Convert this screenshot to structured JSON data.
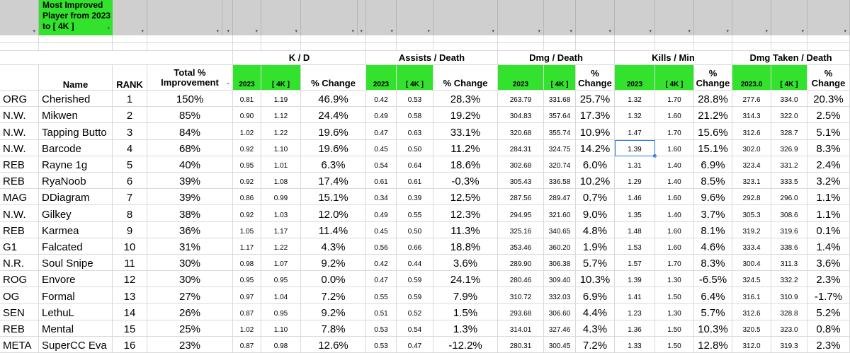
{
  "title": "Most Improved Player from 2023 to [ 4K ]",
  "headers": {
    "name": "Name",
    "rank": "RANK",
    "total": "Total % Improvement",
    "groups": [
      "K / D",
      "Assists / Death",
      "Dmg / Death",
      "Kills / Min",
      "Dmg Taken / Death"
    ],
    "pct_change": "% Change",
    "year_a": [
      "2023",
      "2023",
      "2023",
      "2023",
      "2023.0"
    ],
    "year_b": "[ 4K ]"
  },
  "rows": [
    [
      "ORG",
      "Cherished",
      "1",
      "150%",
      "0.81",
      "1.19",
      "46.9%",
      "0.42",
      "0.53",
      "28.3%",
      "263.79",
      "331.68",
      "25.7%",
      "1.32",
      "1.70",
      "28.8%",
      "277.6",
      "334.0",
      "20.3%"
    ],
    [
      "N.W.",
      "Mikwen",
      "2",
      "85%",
      "0.90",
      "1.12",
      "24.4%",
      "0.49",
      "0.58",
      "19.2%",
      "304.83",
      "357.64",
      "17.3%",
      "1.32",
      "1.60",
      "21.2%",
      "314.3",
      "322.0",
      "2.5%"
    ],
    [
      "N.W.",
      "Tapping Butto",
      "3",
      "84%",
      "1.02",
      "1.22",
      "19.6%",
      "0.47",
      "0.63",
      "33.1%",
      "320.68",
      "355.74",
      "10.9%",
      "1.47",
      "1.70",
      "15.6%",
      "312.6",
      "328.7",
      "5.1%"
    ],
    [
      "N.W.",
      "Barcode",
      "4",
      "68%",
      "0.92",
      "1.10",
      "19.6%",
      "0.45",
      "0.50",
      "11.2%",
      "284.31",
      "324.75",
      "14.2%",
      "1.39",
      "1.60",
      "15.1%",
      "302.0",
      "326.9",
      "8.3%"
    ],
    [
      "REB",
      "Rayne 1g",
      "5",
      "40%",
      "0.95",
      "1.01",
      "6.3%",
      "0.54",
      "0.64",
      "18.6%",
      "302.68",
      "320.74",
      "6.0%",
      "1.31",
      "1.40",
      "6.9%",
      "323.4",
      "331.2",
      "2.4%"
    ],
    [
      "REB",
      "RyaNoob",
      "6",
      "39%",
      "0.92",
      "1.08",
      "17.4%",
      "0.61",
      "0.61",
      "-0.3%",
      "305.43",
      "336.58",
      "10.2%",
      "1.29",
      "1.40",
      "8.5%",
      "323.1",
      "333.5",
      "3.2%"
    ],
    [
      "MAG",
      "DDiagram",
      "7",
      "39%",
      "0.86",
      "0.99",
      "15.1%",
      "0.34",
      "0.39",
      "12.5%",
      "287.56",
      "289.47",
      "0.7%",
      "1.46",
      "1.60",
      "9.6%",
      "292.8",
      "296.0",
      "1.1%"
    ],
    [
      "N.W.",
      "Gilkey",
      "8",
      "38%",
      "0.92",
      "1.03",
      "12.0%",
      "0.49",
      "0.55",
      "12.3%",
      "294.95",
      "321.60",
      "9.0%",
      "1.35",
      "1.40",
      "3.7%",
      "305.3",
      "308.6",
      "1.1%"
    ],
    [
      "REB",
      "Karmea",
      "9",
      "36%",
      "1.05",
      "1.17",
      "11.4%",
      "0.45",
      "0.50",
      "11.3%",
      "325.16",
      "340.65",
      "4.8%",
      "1.48",
      "1.60",
      "8.1%",
      "319.2",
      "319.6",
      "0.1%"
    ],
    [
      "G1",
      "Falcated",
      "10",
      "31%",
      "1.17",
      "1.22",
      "4.3%",
      "0.56",
      "0.66",
      "18.8%",
      "353.46",
      "360.20",
      "1.9%",
      "1.53",
      "1.60",
      "4.6%",
      "333.4",
      "338.6",
      "1.4%"
    ],
    [
      "N.R.",
      "Soul Snipe",
      "11",
      "30%",
      "0.98",
      "1.07",
      "9.2%",
      "0.42",
      "0.44",
      "3.6%",
      "289.90",
      "306.38",
      "5.7%",
      "1.57",
      "1.70",
      "8.3%",
      "300.4",
      "311.3",
      "3.6%"
    ],
    [
      "ROG",
      "Envore",
      "12",
      "30%",
      "0.95",
      "0.95",
      "0.0%",
      "0.47",
      "0.59",
      "24.1%",
      "280.46",
      "309.40",
      "10.3%",
      "1.39",
      "1.30",
      "-6.5%",
      "324.5",
      "332.2",
      "2.3%"
    ],
    [
      "OG",
      "Formal",
      "13",
      "27%",
      "0.97",
      "1.04",
      "7.2%",
      "0.55",
      "0.59",
      "7.9%",
      "310.72",
      "332.03",
      "6.9%",
      "1.41",
      "1.50",
      "6.4%",
      "316.1",
      "310.9",
      "-1.7%"
    ],
    [
      "SEN",
      "LethuL",
      "14",
      "26%",
      "0.87",
      "0.95",
      "9.2%",
      "0.51",
      "0.52",
      "1.5%",
      "293.68",
      "306.60",
      "4.4%",
      "1.23",
      "1.30",
      "5.7%",
      "312.6",
      "328.8",
      "5.2%"
    ],
    [
      "REB",
      "Mental",
      "15",
      "25%",
      "1.02",
      "1.10",
      "7.8%",
      "0.53",
      "0.54",
      "1.3%",
      "314.01",
      "327.46",
      "4.3%",
      "1.36",
      "1.50",
      "10.3%",
      "320.5",
      "323.0",
      "0.8%"
    ],
    [
      "META",
      "SuperCC Eva",
      "16",
      "23%",
      "0.87",
      "0.98",
      "12.6%",
      "0.53",
      "0.47",
      "-12.2%",
      "280.31",
      "300.45",
      "7.2%",
      "1.33",
      "1.50",
      "12.8%",
      "312.0",
      "319.3",
      "2.3%"
    ]
  ],
  "colors": {
    "accent_green": "#33e22c",
    "header_gray": "#cfcfcf",
    "selection_blue": "#1a73e8"
  }
}
